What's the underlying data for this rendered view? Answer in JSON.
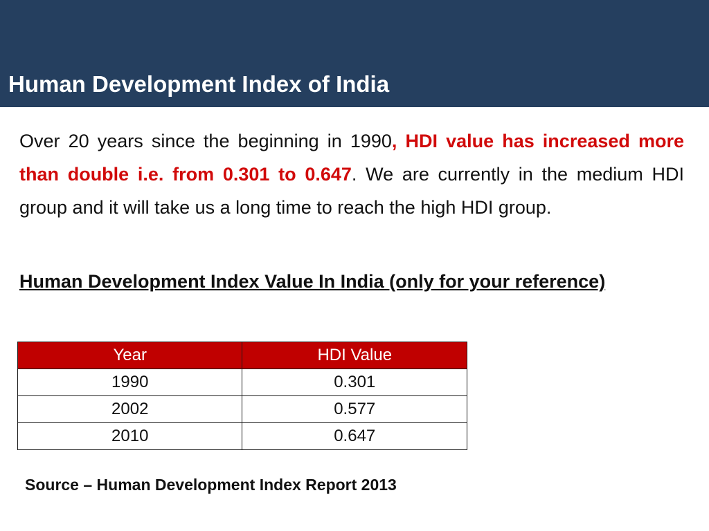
{
  "slide": {
    "title": "Human Development Index of India",
    "colors": {
      "title_bar": "#253f5f",
      "highlight_text": "#d10a0a",
      "table_header": "#c00000"
    }
  },
  "paragraph": {
    "part1": "Over 20 years since the beginning in 1990",
    "highlight": ", HDI value has increased more than double i.e. from 0.301 to 0.647",
    "part2": ". We are currently in the medium HDI group and it will take us a long time to reach the high HDI group."
  },
  "table_heading": "Human Development Index Value In India (only for your reference)",
  "table": {
    "headers": [
      "Year",
      "HDI Value"
    ],
    "rows": [
      [
        "1990",
        "0.301"
      ],
      [
        "2002",
        "0.577"
      ],
      [
        "2010",
        "0.647"
      ]
    ]
  },
  "source": "Source – Human Development Index Report  2013"
}
